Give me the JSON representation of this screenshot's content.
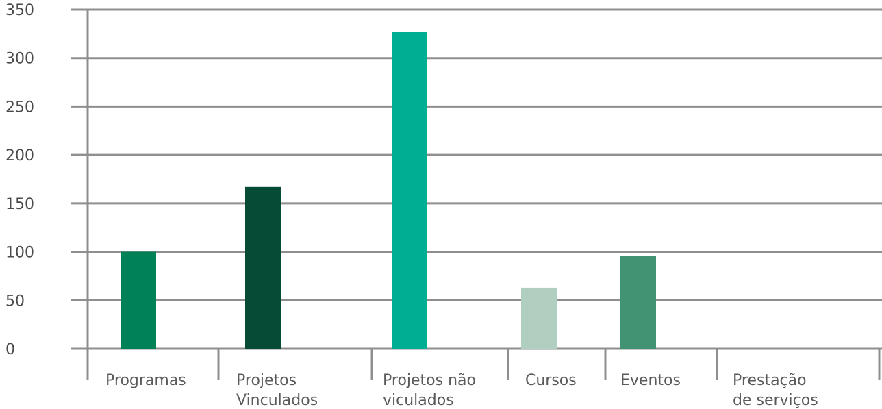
{
  "chart_data": {
    "type": "bar",
    "categories": [
      [
        "Programas"
      ],
      [
        "Projetos",
        "Vinculados"
      ],
      [
        "Projetos não",
        "viculados"
      ],
      [
        "Cursos"
      ],
      [
        "Eventos"
      ],
      [
        "Prestação",
        "de serviços"
      ]
    ],
    "values": [
      100,
      167,
      327,
      63,
      96,
      0
    ],
    "colors": [
      "#008157",
      "#064b35",
      "#00af93",
      "#b1cfc0",
      "#419374",
      "#419374"
    ],
    "ylim": [
      0,
      350
    ],
    "yticks": [
      "0",
      "50",
      "100",
      "150",
      "200",
      "250",
      "300",
      "350"
    ],
    "grid": true,
    "grid_color": "#8f8f8f",
    "title": "",
    "xlabel": "",
    "ylabel": ""
  }
}
